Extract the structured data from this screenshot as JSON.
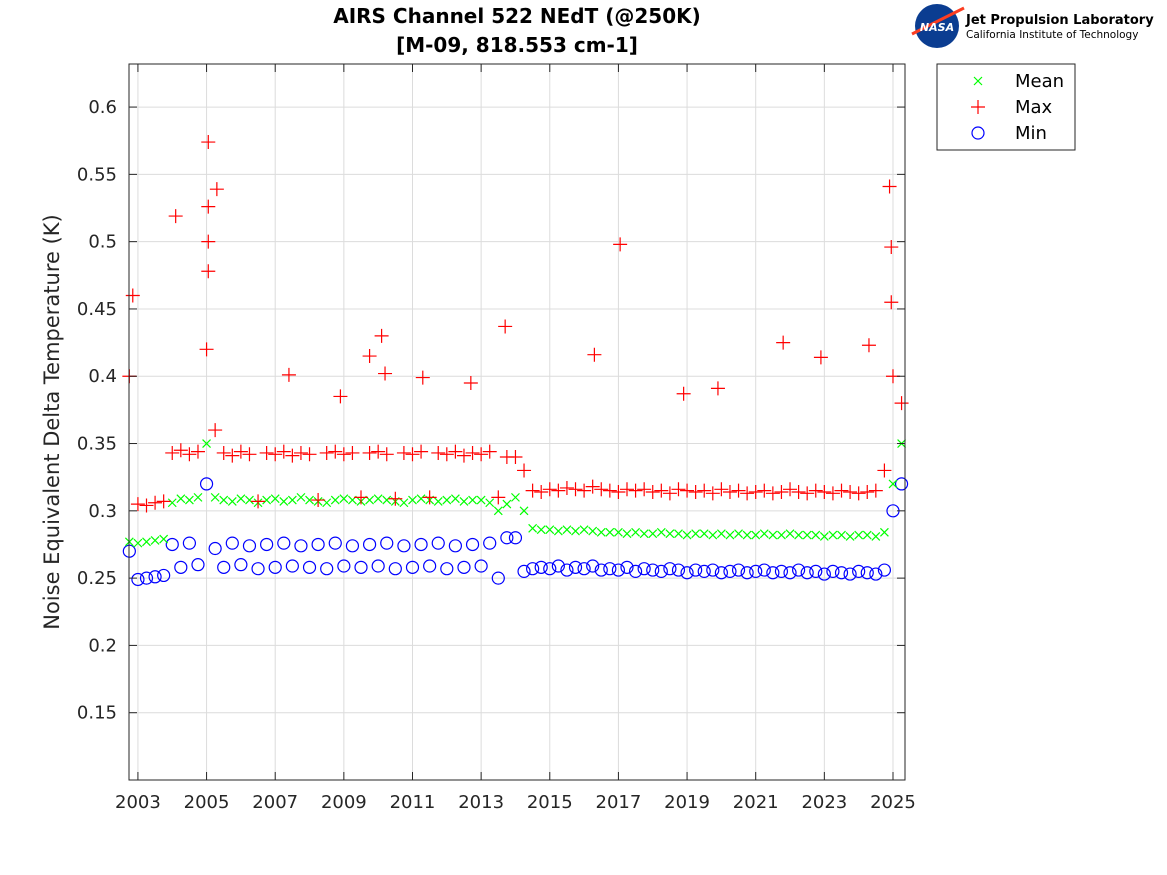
{
  "logo": {
    "org": "Jet Propulsion Laboratory",
    "sub": "California Institute of Technology",
    "badge": "NASA"
  },
  "chart_data": {
    "type": "scatter",
    "title": "AIRS Channel 522 NEdT (@250K)",
    "subtitle": "[M-09, 818.553 cm-1]",
    "xlabel": "",
    "ylabel": "Noise Equivalent Delta Temperature (K)",
    "xlim": [
      2002.74,
      2025.35
    ],
    "ylim": [
      0.1,
      0.632
    ],
    "xticks": [
      2003,
      2005,
      2007,
      2009,
      2011,
      2013,
      2015,
      2017,
      2019,
      2021,
      2023,
      2025
    ],
    "yticks": [
      0.15,
      0.2,
      0.25,
      0.3,
      0.35,
      0.4,
      0.45,
      0.5,
      0.55,
      0.6
    ],
    "grid": true,
    "legend_position": "outside-top-right",
    "colors": {
      "Mean": "#00ff00",
      "Max": "#ff0000",
      "Min": "#0000ff"
    },
    "markers": {
      "Mean": "x",
      "Max": "+",
      "Min": "o"
    },
    "x": [
      2002.75,
      2003,
      2003.25,
      2003.5,
      2003.75,
      2004,
      2004.25,
      2004.5,
      2004.75,
      2005,
      2005.25,
      2005.5,
      2005.75,
      2006,
      2006.25,
      2006.5,
      2006.75,
      2007,
      2007.25,
      2007.5,
      2007.75,
      2008,
      2008.25,
      2008.5,
      2008.75,
      2009,
      2009.25,
      2009.5,
      2009.75,
      2010,
      2010.25,
      2010.5,
      2010.75,
      2011,
      2011.25,
      2011.5,
      2011.75,
      2012,
      2012.25,
      2012.5,
      2012.75,
      2013,
      2013.25,
      2013.5,
      2013.75,
      2014,
      2014.25,
      2014.5,
      2014.75,
      2015,
      2015.25,
      2015.5,
      2015.75,
      2016,
      2016.25,
      2016.5,
      2016.75,
      2017,
      2017.25,
      2017.5,
      2017.75,
      2018,
      2018.25,
      2018.5,
      2018.75,
      2019,
      2019.25,
      2019.5,
      2019.75,
      2020,
      2020.25,
      2020.5,
      2020.75,
      2021,
      2021.25,
      2021.5,
      2021.75,
      2022,
      2022.25,
      2022.5,
      2022.75,
      2023,
      2023.25,
      2023.5,
      2023.75,
      2024,
      2024.25,
      2024.5,
      2024.75,
      2025,
      2025.25
    ],
    "series": [
      {
        "name": "Mean",
        "values": [
          0.277,
          0.276,
          0.277,
          0.278,
          0.279,
          0.306,
          0.309,
          0.308,
          0.31,
          0.35,
          0.31,
          0.308,
          0.307,
          0.309,
          0.308,
          0.306,
          0.308,
          0.309,
          0.307,
          0.308,
          0.31,
          0.308,
          0.307,
          0.306,
          0.308,
          0.309,
          0.308,
          0.307,
          0.308,
          0.309,
          0.308,
          0.307,
          0.306,
          0.308,
          0.309,
          0.308,
          0.307,
          0.308,
          0.309,
          0.307,
          0.308,
          0.308,
          0.306,
          0.3,
          0.305,
          0.31,
          0.3,
          0.287,
          0.286,
          0.286,
          0.285,
          0.286,
          0.285,
          0.286,
          0.285,
          0.284,
          0.284,
          0.284,
          0.283,
          0.284,
          0.283,
          0.283,
          0.284,
          0.283,
          0.283,
          0.282,
          0.283,
          0.283,
          0.282,
          0.283,
          0.282,
          0.283,
          0.282,
          0.282,
          0.283,
          0.282,
          0.282,
          0.283,
          0.282,
          0.282,
          0.282,
          0.281,
          0.282,
          0.282,
          0.281,
          0.282,
          0.282,
          0.281,
          0.284,
          0.32,
          0.35
        ]
      },
      {
        "name": "Max",
        "values": [
          0.4,
          0.305,
          0.304,
          0.306,
          0.307,
          0.343,
          0.345,
          0.342,
          0.344,
          0.42,
          0.36,
          0.343,
          0.341,
          0.344,
          0.342,
          0.307,
          0.343,
          0.342,
          0.344,
          0.341,
          0.343,
          0.342,
          0.308,
          0.343,
          0.344,
          0.342,
          0.343,
          0.31,
          0.343,
          0.344,
          0.342,
          0.309,
          0.343,
          0.342,
          0.344,
          0.31,
          0.343,
          0.342,
          0.344,
          0.341,
          0.343,
          0.342,
          0.344,
          0.31,
          0.34,
          0.34,
          0.33,
          0.315,
          0.314,
          0.316,
          0.315,
          0.317,
          0.316,
          0.315,
          0.318,
          0.316,
          0.315,
          0.314,
          0.316,
          0.315,
          0.316,
          0.314,
          0.315,
          0.313,
          0.316,
          0.315,
          0.314,
          0.315,
          0.313,
          0.316,
          0.314,
          0.315,
          0.313,
          0.314,
          0.315,
          0.313,
          0.314,
          0.316,
          0.314,
          0.313,
          0.315,
          0.314,
          0.313,
          0.315,
          0.314,
          0.313,
          0.314,
          0.315,
          0.33,
          0.4,
          0.38
        ]
      },
      {
        "name": "Min",
        "values": [
          0.27,
          0.249,
          0.25,
          0.251,
          0.252,
          0.275,
          0.258,
          0.276,
          0.26,
          0.32,
          0.272,
          0.258,
          0.276,
          0.26,
          0.274,
          0.257,
          0.275,
          0.258,
          0.276,
          0.259,
          0.274,
          0.258,
          0.275,
          0.257,
          0.276,
          0.259,
          0.274,
          0.258,
          0.275,
          0.259,
          0.276,
          0.257,
          0.274,
          0.258,
          0.275,
          0.259,
          0.276,
          0.257,
          0.274,
          0.258,
          0.275,
          0.259,
          0.276,
          0.25,
          0.28,
          0.28,
          0.255,
          0.257,
          0.258,
          0.257,
          0.259,
          0.256,
          0.258,
          0.257,
          0.259,
          0.256,
          0.257,
          0.256,
          0.258,
          0.255,
          0.257,
          0.256,
          0.255,
          0.257,
          0.256,
          0.254,
          0.256,
          0.255,
          0.256,
          0.254,
          0.255,
          0.256,
          0.254,
          0.255,
          0.256,
          0.254,
          0.255,
          0.254,
          0.256,
          0.254,
          0.255,
          0.253,
          0.255,
          0.254,
          0.253,
          0.255,
          0.254,
          0.253,
          0.256,
          0.3,
          0.32
        ]
      }
    ],
    "outliers": {
      "name": "Max",
      "points": [
        [
          2002.85,
          0.46
        ],
        [
          2004.1,
          0.519
        ],
        [
          2005.05,
          0.574
        ],
        [
          2005.05,
          0.526
        ],
        [
          2005.05,
          0.5
        ],
        [
          2005.05,
          0.478
        ],
        [
          2005.3,
          0.539
        ],
        [
          2007.4,
          0.401
        ],
        [
          2008.9,
          0.385
        ],
        [
          2009.75,
          0.415
        ],
        [
          2010.1,
          0.43
        ],
        [
          2010.2,
          0.402
        ],
        [
          2011.3,
          0.399
        ],
        [
          2012.7,
          0.395
        ],
        [
          2013.7,
          0.437
        ],
        [
          2016.3,
          0.416
        ],
        [
          2017.05,
          0.498
        ],
        [
          2018.9,
          0.387
        ],
        [
          2019.9,
          0.391
        ],
        [
          2021.8,
          0.425
        ],
        [
          2022.9,
          0.414
        ],
        [
          2024.3,
          0.423
        ],
        [
          2024.9,
          0.541
        ],
        [
          2024.95,
          0.496
        ],
        [
          2024.95,
          0.455
        ]
      ]
    }
  }
}
